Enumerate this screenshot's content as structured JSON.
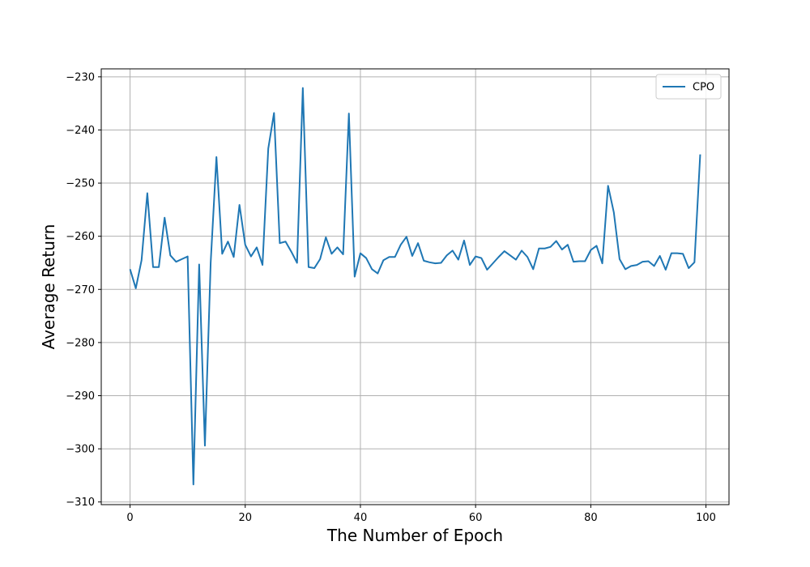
{
  "chart_data": {
    "type": "line",
    "title": "",
    "xlabel": "The Number of Epoch",
    "ylabel": "Average Return",
    "xlim": [
      -5,
      104
    ],
    "ylim": [
      -310.5,
      -228.5
    ],
    "xticks": [
      0,
      20,
      40,
      60,
      80,
      100
    ],
    "yticks": [
      -230,
      -240,
      -250,
      -260,
      -270,
      -280,
      -290,
      -300,
      -310
    ],
    "grid": true,
    "legend": {
      "placement": "top-right",
      "entries": [
        "CPO"
      ]
    },
    "series": [
      {
        "name": "CPO",
        "color": "#1f77b4",
        "x": [
          0,
          1,
          2,
          3,
          4,
          5,
          6,
          7,
          8,
          9,
          10,
          11,
          12,
          13,
          14,
          15,
          16,
          17,
          18,
          19,
          20,
          21,
          22,
          23,
          24,
          25,
          26,
          27,
          28,
          29,
          30,
          31,
          32,
          33,
          34,
          35,
          36,
          37,
          38,
          39,
          40,
          41,
          42,
          43,
          44,
          45,
          46,
          47,
          48,
          49,
          50,
          51,
          52,
          53,
          54,
          55,
          56,
          57,
          58,
          59,
          60,
          61,
          62,
          63,
          64,
          65,
          66,
          67,
          68,
          69,
          70,
          71,
          72,
          73,
          74,
          75,
          76,
          77,
          78,
          79,
          80,
          81,
          82,
          83,
          84,
          85,
          86,
          87,
          88,
          89,
          90,
          91,
          92,
          93,
          94,
          95,
          96,
          97,
          98,
          99
        ],
        "values": [
          -266.2,
          -269.8,
          -264.5,
          -251.9,
          -265.8,
          -265.8,
          -256.5,
          -263.6,
          -264.8,
          -264.3,
          -263.8,
          -306.7,
          -265.3,
          -299.4,
          -265.0,
          -245.1,
          -263.3,
          -261.0,
          -263.9,
          -254.1,
          -261.6,
          -263.8,
          -262.1,
          -265.4,
          -243.5,
          -236.8,
          -261.3,
          -261.0,
          -262.9,
          -265.0,
          -232.1,
          -265.8,
          -266.0,
          -264.3,
          -260.2,
          -263.3,
          -262.1,
          -263.4,
          -236.9,
          -267.6,
          -263.2,
          -264.1,
          -266.2,
          -267.0,
          -264.5,
          -263.9,
          -263.9,
          -261.6,
          -260.1,
          -263.7,
          -261.3,
          -264.6,
          -264.9,
          -265.1,
          -265.0,
          -263.6,
          -262.7,
          -264.4,
          -260.8,
          -265.4,
          -263.8,
          -264.1,
          -266.3,
          -265.1,
          -263.9,
          -262.8,
          -263.6,
          -264.4,
          -262.7,
          -263.9,
          -266.2,
          -262.3,
          -262.3,
          -262.0,
          -260.9,
          -262.5,
          -261.6,
          -264.8,
          -264.7,
          -264.7,
          -262.6,
          -261.8,
          -265.1,
          -250.5,
          -255.5,
          -264.3,
          -266.2,
          -265.6,
          -265.4,
          -264.8,
          -264.7,
          -265.6,
          -263.7,
          -266.3,
          -263.2,
          -263.2,
          -263.3,
          -266.0,
          -264.9,
          -244.6
        ]
      }
    ]
  }
}
